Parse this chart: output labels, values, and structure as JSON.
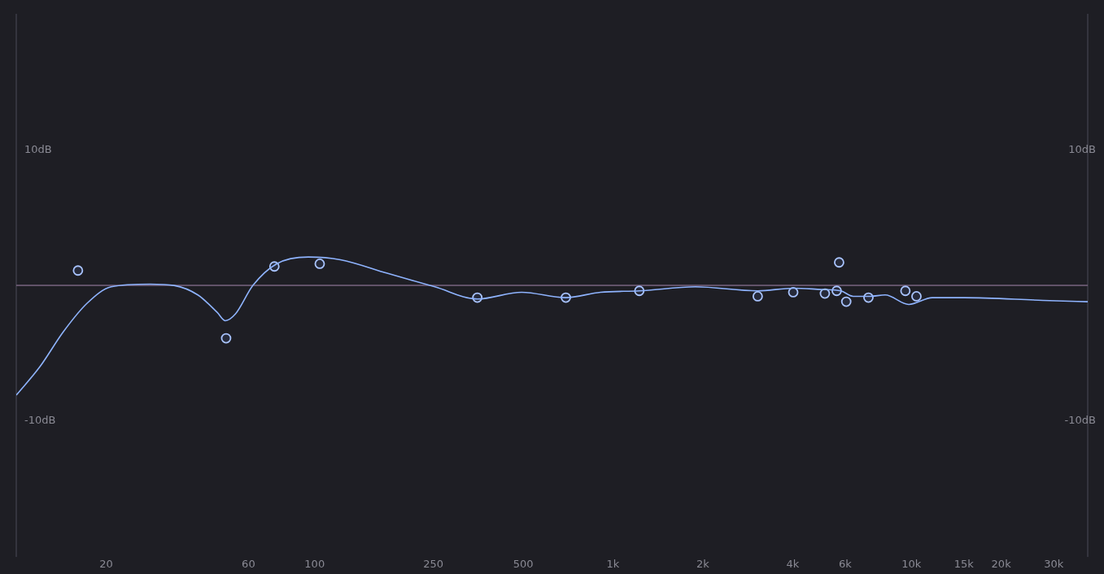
{
  "chart_data": {
    "type": "line",
    "log": "x",
    "grid": false,
    "legend": false,
    "xlim": [
      10,
      39000
    ],
    "xticks": [
      20,
      60,
      100,
      250,
      500,
      {
        "value": 1000,
        "label": "1k"
      },
      {
        "value": 2000,
        "label": "2k"
      },
      {
        "value": 4000,
        "label": "4k"
      },
      {
        "value": 6000,
        "label": "6k"
      },
      {
        "value": 10000,
        "label": "10k"
      },
      {
        "value": 15000,
        "label": "15k"
      },
      {
        "value": 20000,
        "label": "20k"
      },
      {
        "value": 30000,
        "label": "30k"
      }
    ],
    "ylim": [
      -20,
      20
    ],
    "yticks": [
      {
        "value": 10,
        "label": "10dB"
      },
      {
        "value": -10,
        "label": "-10dB"
      }
    ],
    "y2lim": [
      -20,
      20
    ],
    "y2ticks": [
      {
        "value": 10,
        "label": "10dB"
      },
      {
        "value": -10,
        "label": "-10dB"
      }
    ],
    "ref_lines": [
      {
        "axis": "y",
        "value": 0,
        "color": "#7a6480"
      }
    ],
    "series": [
      {
        "color": "#8fb4ff",
        "marker": "none",
        "x": [
          10,
          12,
          14.4,
          17.3,
          20.8,
          28.1,
          33.8,
          40.6,
          47.2,
          50.2,
          54.3,
          62.1,
          74.6,
          95.3,
          122,
          175,
          253,
          351,
          494,
          695,
          908,
          1225,
          1888,
          3055,
          4018,
          5000,
          5800,
          6380,
          7270,
          8170,
          9800,
          11750,
          15000,
          27600,
          39000
        ],
        "values": [
          -8.1,
          -6.0,
          -3.4,
          -1.3,
          -0.1,
          0.1,
          0.0,
          -0.7,
          -2.0,
          -2.6,
          -2.1,
          0.0,
          1.6,
          2.1,
          1.9,
          0.9,
          -0.1,
          -1.0,
          -0.5,
          -0.9,
          -0.5,
          -0.4,
          -0.1,
          -0.4,
          -0.2,
          -0.3,
          -0.4,
          -0.8,
          -0.8,
          -0.7,
          -1.4,
          -0.9,
          -0.9,
          -1.1,
          -1.2
        ]
      },
      {
        "type": "scatter",
        "color": "#a9c4ff",
        "marker": "circle",
        "x": [
          16.1,
          50.5,
          73.3,
          104,
          351,
          695,
          1225,
          3055,
          4018,
          5130,
          5620,
          5726,
          6050,
          7180,
          9550,
          10400
        ],
        "values": [
          1.1,
          -3.9,
          1.4,
          1.6,
          -0.9,
          -0.9,
          -0.4,
          -0.8,
          -0.5,
          -0.6,
          -0.4,
          1.7,
          -1.2,
          -0.9,
          -0.4,
          -0.8
        ]
      }
    ]
  }
}
